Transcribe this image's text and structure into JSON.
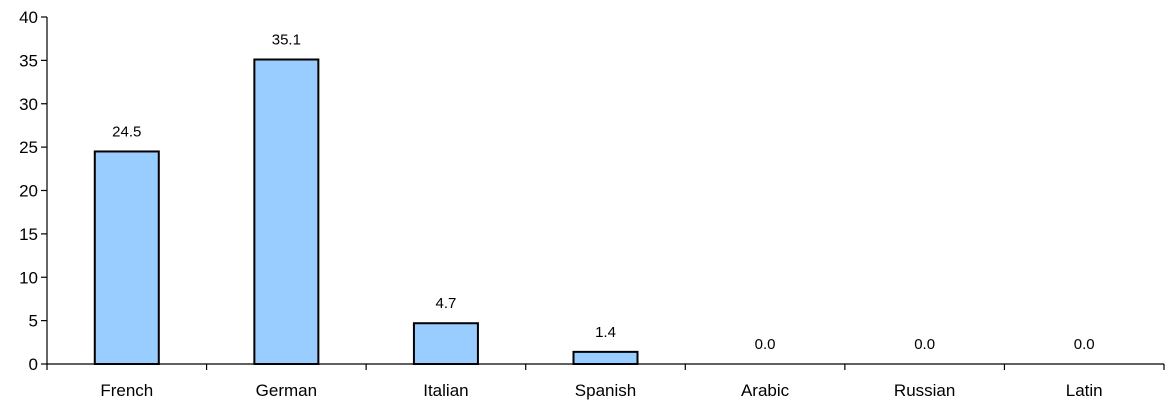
{
  "chart_data": {
    "type": "bar",
    "categories": [
      "French",
      "German",
      "Italian",
      "Spanish",
      "Arabic",
      "Russian",
      "Latin"
    ],
    "values": [
      24.5,
      35.1,
      4.7,
      1.4,
      0.0,
      0.0,
      0.0
    ],
    "data_labels": [
      "24.5",
      "35.1",
      "4.7",
      "1.4",
      "0.0",
      "0.0",
      "0.0"
    ],
    "y_ticks": [
      "0",
      "5",
      "10",
      "15",
      "20",
      "25",
      "30",
      "35",
      "40"
    ],
    "ylim": [
      0,
      40
    ],
    "grid": false,
    "legend": "none",
    "bar_color": "#99CCFF",
    "bar_edge_color": "#000000"
  }
}
